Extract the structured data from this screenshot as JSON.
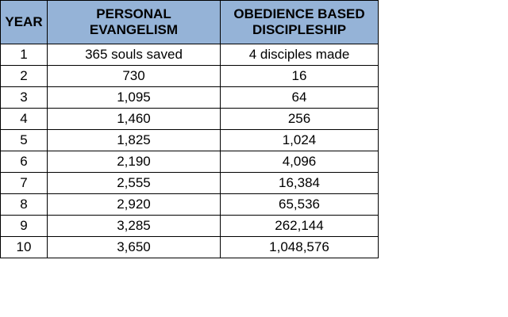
{
  "table": {
    "headers": [
      {
        "line1": "YEAR",
        "line2": ""
      },
      {
        "line1": "PERSONAL",
        "line2": "EVANGELISM"
      },
      {
        "line1": "OBEDIENCE BASED",
        "line2": "DISCIPLESHIP"
      }
    ],
    "rows": [
      {
        "year": "1",
        "personal": "365 souls saved",
        "obedience": "4 disciples made"
      },
      {
        "year": "2",
        "personal": "730",
        "obedience": "16"
      },
      {
        "year": "3",
        "personal": "1,095",
        "obedience": "64"
      },
      {
        "year": "4",
        "personal": "1,460",
        "obedience": "256"
      },
      {
        "year": "5",
        "personal": "1,825",
        "obedience": "1,024"
      },
      {
        "year": "6",
        "personal": "2,190",
        "obedience": "4,096"
      },
      {
        "year": "7",
        "personal": "2,555",
        "obedience": "16,384"
      },
      {
        "year": "8",
        "personal": "2,920",
        "obedience": "65,536"
      },
      {
        "year": "9",
        "personal": "3,285",
        "obedience": "262,144"
      },
      {
        "year": "10",
        "personal": "3,650",
        "obedience": "1,048,576"
      }
    ]
  },
  "colors": {
    "header_background": "#95b3d7",
    "border": "#000000"
  }
}
